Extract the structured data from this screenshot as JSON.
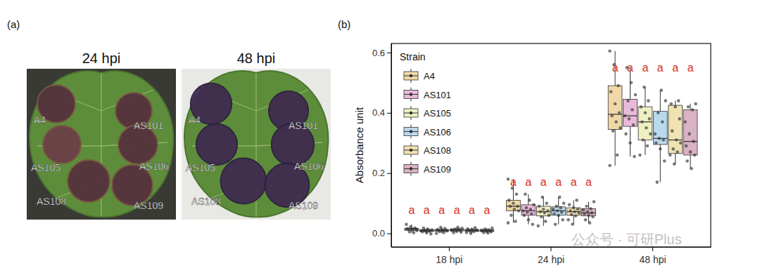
{
  "panel_labels": [
    "(a)",
    "(b)"
  ],
  "photos": [
    {
      "title": "24 hpi",
      "labels": [
        "A4",
        "AS101",
        "AS105",
        "AS106",
        "AS108",
        "AS109"
      ]
    },
    {
      "title": "48 hpi",
      "labels": [
        "A4",
        "AS101",
        "AS105",
        "AS106",
        "AS108",
        "AS109"
      ]
    }
  ],
  "watermark": "公众号 · 可研Plus",
  "chart_data": {
    "type": "box",
    "y_label": "Absorbance unit",
    "legend_title": "Strain",
    "legend": "top-left",
    "grid": false,
    "categories": [
      "18 hpi",
      "24 hpi",
      "48 hpi"
    ],
    "ylim": [
      -0.045,
      0.63
    ],
    "yticks": [
      {
        "value": 0,
        "label": "0.0"
      },
      {
        "value": 0.2,
        "label": "0.2"
      },
      {
        "value": 0.4,
        "label": "0.4"
      },
      {
        "value": 0.6,
        "label": "0.6"
      }
    ],
    "series": [
      {
        "name": "A4",
        "color": "#f0d8a6",
        "letters": [
          "a",
          "a",
          "a"
        ],
        "values": [
          {
            "min": 0.002,
            "q1": 0.01,
            "median": 0.014,
            "q3": 0.017,
            "max": 0.03,
            "points": [
              0.03,
              0.022,
              0.018,
              0.016,
              0.015,
              0.014,
              0.013,
              0.011,
              0.009,
              0.005,
              0.002
            ]
          },
          {
            "min": 0.035,
            "q1": 0.075,
            "median": 0.09,
            "q3": 0.11,
            "max": 0.18,
            "points": [
              0.18,
              0.15,
              0.13,
              0.11,
              0.1,
              0.09,
              0.09,
              0.08,
              0.075,
              0.06,
              0.04,
              0.035
            ]
          },
          {
            "min": 0.225,
            "q1": 0.345,
            "median": 0.395,
            "q3": 0.49,
            "max": 0.605,
            "points": [
              0.605,
              0.56,
              0.49,
              0.47,
              0.43,
              0.4,
              0.39,
              0.37,
              0.35,
              0.34,
              0.26,
              0.225
            ]
          }
        ]
      },
      {
        "name": "AS101",
        "color": "#e9b9da",
        "letters": [
          "a",
          "a",
          "a"
        ],
        "values": [
          {
            "min": -0.002,
            "q1": 0.006,
            "median": 0.009,
            "q3": 0.012,
            "max": 0.018,
            "points": [
              0.018,
              0.014,
              0.012,
              0.011,
              0.01,
              0.009,
              0.008,
              0.007,
              0.005,
              0.002,
              -0.002
            ]
          },
          {
            "min": 0.03,
            "q1": 0.06,
            "median": 0.075,
            "q3": 0.095,
            "max": 0.13,
            "points": [
              0.13,
              0.11,
              0.095,
              0.085,
              0.08,
              0.075,
              0.07,
              0.065,
              0.06,
              0.045,
              0.03
            ]
          },
          {
            "min": 0.255,
            "q1": 0.355,
            "median": 0.39,
            "q3": 0.445,
            "max": 0.55,
            "points": [
              0.55,
              0.5,
              0.46,
              0.44,
              0.41,
              0.39,
              0.38,
              0.36,
              0.33,
              0.3,
              0.255
            ]
          }
        ]
      },
      {
        "name": "AS105",
        "color": "#eef0c2",
        "letters": [
          "a",
          "a",
          "a"
        ],
        "values": [
          {
            "min": 0.0,
            "q1": 0.007,
            "median": 0.01,
            "q3": 0.013,
            "max": 0.02,
            "points": [
              0.02,
              0.016,
              0.013,
              0.012,
              0.011,
              0.01,
              0.009,
              0.008,
              0.006,
              0.003,
              0.0
            ]
          },
          {
            "min": 0.025,
            "q1": 0.058,
            "median": 0.072,
            "q3": 0.09,
            "max": 0.12,
            "points": [
              0.12,
              0.1,
              0.09,
              0.08,
              0.075,
              0.072,
              0.068,
              0.06,
              0.055,
              0.04,
              0.025
            ]
          },
          {
            "min": 0.26,
            "q1": 0.31,
            "median": 0.37,
            "q3": 0.42,
            "max": 0.485,
            "points": [
              0.485,
              0.44,
              0.42,
              0.4,
              0.38,
              0.37,
              0.35,
              0.33,
              0.31,
              0.29,
              0.26
            ]
          }
        ]
      },
      {
        "name": "AS106",
        "color": "#b9d9ee",
        "letters": [
          "a",
          "a",
          "a"
        ],
        "values": [
          {
            "min": 0.002,
            "q1": 0.008,
            "median": 0.011,
            "q3": 0.014,
            "max": 0.02,
            "points": [
              0.02,
              0.017,
              0.014,
              0.013,
              0.012,
              0.011,
              0.01,
              0.009,
              0.007,
              0.004,
              0.002
            ]
          },
          {
            "min": 0.03,
            "q1": 0.06,
            "median": 0.075,
            "q3": 0.088,
            "max": 0.12,
            "points": [
              0.12,
              0.1,
              0.09,
              0.085,
              0.08,
              0.075,
              0.07,
              0.065,
              0.06,
              0.045,
              0.03
            ]
          },
          {
            "min": 0.17,
            "q1": 0.295,
            "median": 0.315,
            "q3": 0.405,
            "max": 0.475,
            "points": [
              0.475,
              0.44,
              0.4,
              0.37,
              0.33,
              0.315,
              0.31,
              0.3,
              0.28,
              0.24,
              0.17
            ]
          }
        ]
      },
      {
        "name": "AS108",
        "color": "#f1e2b2",
        "letters": [
          "a",
          "a",
          "a"
        ],
        "values": [
          {
            "min": 0.0,
            "q1": 0.007,
            "median": 0.01,
            "q3": 0.013,
            "max": 0.019,
            "points": [
              0.019,
              0.015,
              0.013,
              0.012,
              0.011,
              0.01,
              0.009,
              0.008,
              0.006,
              0.003,
              0.0
            ]
          },
          {
            "min": 0.03,
            "q1": 0.06,
            "median": 0.072,
            "q3": 0.085,
            "max": 0.11,
            "points": [
              0.11,
              0.095,
              0.085,
              0.08,
              0.075,
              0.072,
              0.068,
              0.062,
              0.058,
              0.045,
              0.03
            ]
          },
          {
            "min": 0.23,
            "q1": 0.265,
            "median": 0.31,
            "q3": 0.425,
            "max": 0.44,
            "points": [
              0.44,
              0.43,
              0.42,
              0.38,
              0.34,
              0.31,
              0.3,
              0.28,
              0.27,
              0.26,
              0.23
            ]
          }
        ]
      },
      {
        "name": "AS109",
        "color": "#d9b2c3",
        "letters": [
          "a",
          "a",
          "a"
        ],
        "values": [
          {
            "min": 0.001,
            "q1": 0.006,
            "median": 0.009,
            "q3": 0.012,
            "max": 0.018,
            "points": [
              0.018,
              0.014,
              0.012,
              0.011,
              0.01,
              0.009,
              0.008,
              0.007,
              0.005,
              0.003,
              0.001
            ]
          },
          {
            "min": 0.035,
            "q1": 0.058,
            "median": 0.068,
            "q3": 0.082,
            "max": 0.105,
            "points": [
              0.105,
              0.09,
              0.082,
              0.078,
              0.072,
              0.068,
              0.065,
              0.06,
              0.055,
              0.045,
              0.035
            ]
          },
          {
            "min": 0.215,
            "q1": 0.26,
            "median": 0.305,
            "q3": 0.41,
            "max": 0.43,
            "points": [
              0.43,
              0.42,
              0.41,
              0.37,
              0.33,
              0.305,
              0.29,
              0.27,
              0.26,
              0.24,
              0.215
            ]
          }
        ]
      }
    ]
  }
}
